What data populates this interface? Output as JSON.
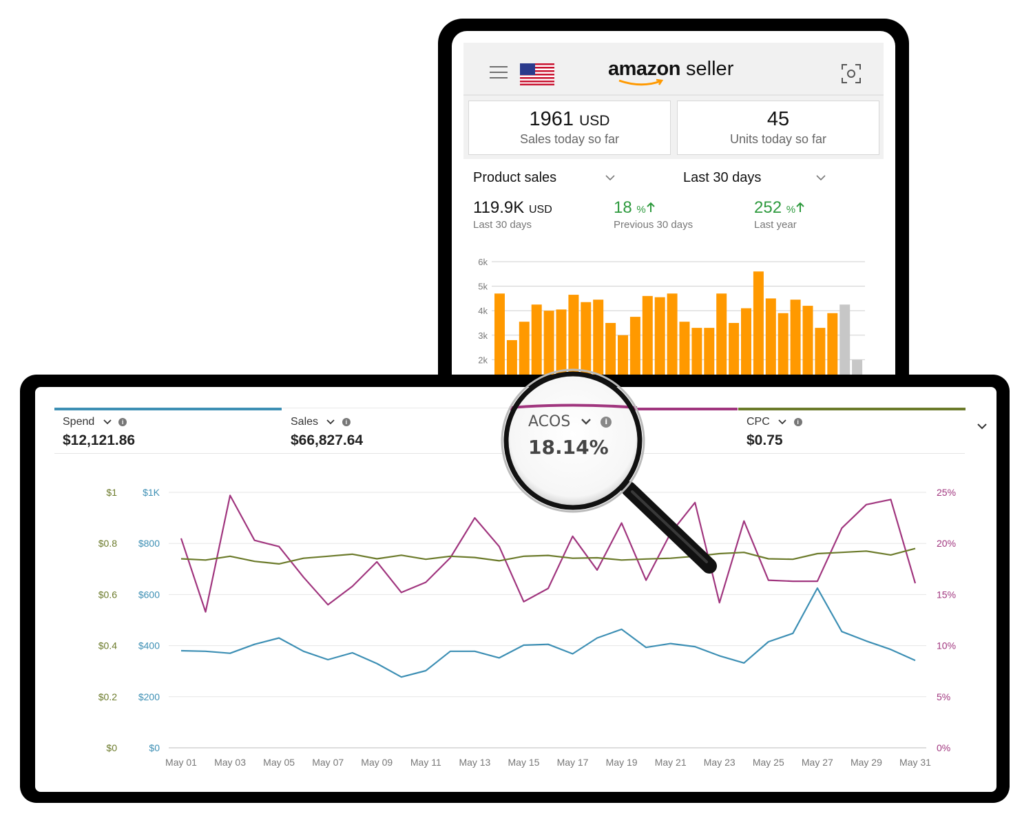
{
  "header": {
    "logo_word": "amazon",
    "logo_suffix": "seller"
  },
  "today": [
    {
      "value": "1961",
      "unit": "USD",
      "label": "Sales today so far"
    },
    {
      "value": "45",
      "unit": "",
      "label": "Units today so far"
    }
  ],
  "filters": {
    "metric": "Product sales",
    "period": "Last 30 days"
  },
  "summary": [
    {
      "value": "119.9K",
      "unit": "USD",
      "label": "Last 30 days"
    },
    {
      "value": "18",
      "unit": "%",
      "label": "Previous 30 days"
    },
    {
      "value": "252",
      "unit": "%",
      "label": "Last year"
    }
  ],
  "colors": {
    "orange_bar": "#ff9900",
    "grey_bar": "#c7c7c7",
    "up_green": "#2e9a3e",
    "spend": "#3d8fb4",
    "acos": "#a0357e",
    "cpc": "#6b7a2a"
  },
  "icons": {
    "menu": "hamburger-icon",
    "flag": "us-flag-icon",
    "scan": "scan-icon",
    "up": "arrow-up-icon",
    "info": "info-icon",
    "chevron": "chevron-down-icon",
    "magnifier": "magnifier-icon"
  },
  "ads_tabs": [
    {
      "label": "Spend",
      "value": "$12,121.86"
    },
    {
      "label": "Sales",
      "value": "$66,827.64"
    },
    {
      "label": "ACOS",
      "value": "18.14%"
    },
    {
      "label": "CPC",
      "value": "$0.75"
    }
  ],
  "chart_data": [
    {
      "type": "bar",
      "yticks": [
        "6k",
        "5k",
        "4k",
        "3k",
        "2k"
      ],
      "ylim": [
        2000,
        6000
      ],
      "values": [
        4700,
        2800,
        3550,
        4250,
        4000,
        4050,
        4650,
        4350,
        4450,
        3500,
        3000,
        3750,
        4600,
        4550,
        4700,
        3550,
        3300,
        3300,
        4700,
        3500,
        4100,
        5600,
        4500,
        3900,
        4450,
        4200,
        3300,
        3900
      ],
      "partial_values": [
        4250,
        2000
      ]
    },
    {
      "type": "line",
      "x": [
        "May 01",
        "May 02",
        "May 03",
        "May 04",
        "May 05",
        "May 06",
        "May 07",
        "May 08",
        "May 09",
        "May 10",
        "May 11",
        "May 12",
        "May 13",
        "May 14",
        "May 15",
        "May 16",
        "May 17",
        "May 18",
        "May 19",
        "May 20",
        "May 21",
        "May 22",
        "May 23",
        "May 24",
        "May 25",
        "May 26",
        "May 27",
        "May 28",
        "May 29",
        "May 30",
        "May 31"
      ],
      "xticks": [
        "May 01",
        "May 03",
        "May 05",
        "May 07",
        "May 09",
        "May 11",
        "May 13",
        "May 15",
        "May 17",
        "May 19",
        "May 21",
        "May 23",
        "May 25",
        "May 27",
        "May 29",
        "May 31"
      ],
      "yticks_left_cpc": [
        "$1",
        "$0.8",
        "$0.6",
        "$0.4",
        "$0.2",
        "$0"
      ],
      "yticks_left_spend": [
        "$1K",
        "$800",
        "$600",
        "$400",
        "$200",
        "$0"
      ],
      "yticks_right_acos": [
        "25%",
        "20%",
        "15%",
        "10%",
        "5%",
        "0%"
      ],
      "series": [
        {
          "name": "Spend",
          "axis": "spend",
          "ylim": [
            0,
            1000
          ],
          "values": [
            380,
            378,
            370,
            405,
            430,
            378,
            345,
            372,
            330,
            277,
            302,
            378,
            378,
            352,
            402,
            405,
            368,
            430,
            464,
            393,
            408,
            396,
            360,
            332,
            415,
            448,
            625,
            455,
            418,
            385,
            342
          ]
        },
        {
          "name": "ACOS",
          "axis": "acos",
          "ylim": [
            0,
            25
          ],
          "values": [
            20.5,
            13.3,
            24.7,
            20.3,
            19.7,
            16.7,
            14.0,
            15.8,
            18.2,
            15.2,
            16.2,
            18.6,
            22.5,
            19.7,
            14.3,
            15.6,
            20.7,
            17.4,
            22.0,
            16.4,
            21.0,
            24.0,
            14.2,
            22.2,
            16.4,
            16.3,
            16.3,
            21.5,
            23.8,
            24.3,
            16.1
          ]
        },
        {
          "name": "CPC",
          "axis": "cpc",
          "ylim": [
            0,
            1
          ],
          "values": [
            0.74,
            0.735,
            0.75,
            0.73,
            0.72,
            0.742,
            0.75,
            0.758,
            0.74,
            0.754,
            0.738,
            0.75,
            0.745,
            0.732,
            0.75,
            0.753,
            0.742,
            0.744,
            0.735,
            0.739,
            0.742,
            0.75,
            0.76,
            0.765,
            0.74,
            0.738,
            0.76,
            0.765,
            0.77,
            0.755,
            0.78
          ]
        }
      ]
    }
  ]
}
